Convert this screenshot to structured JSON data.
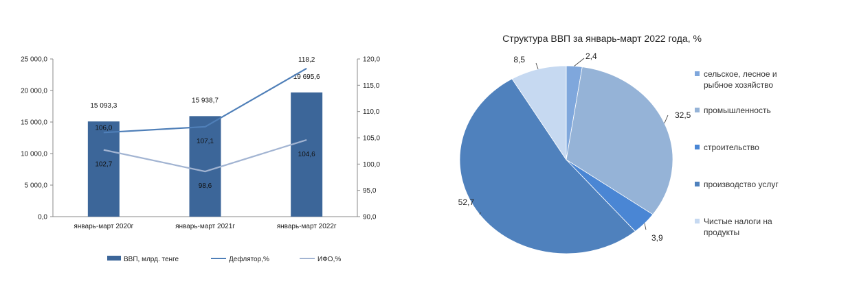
{
  "chart_data": [
    {
      "type": "bar",
      "title": "",
      "categories": [
        "январь-март 2020г",
        "январь-март 2021г",
        "январь-март 2022г"
      ],
      "series": [
        {
          "name": "ВВП, млрд. тенге",
          "kind": "bar",
          "axis": "left",
          "color": "#3c6699",
          "values": [
            15093.3,
            15938.7,
            19695.6
          ],
          "labels": [
            "15 093,3",
            "15 938,7",
            "19 695,6"
          ]
        },
        {
          "name": "Дефлятор,%",
          "kind": "line",
          "axis": "right",
          "color": "#4f7fb8",
          "values": [
            106.0,
            107.1,
            118.2
          ],
          "labels": [
            "106,0",
            "107,1",
            "118,2"
          ]
        },
        {
          "name": "ИФО,%",
          "kind": "line",
          "axis": "right",
          "color": "#a2b4d2",
          "values": [
            102.7,
            98.6,
            104.6
          ],
          "labels": [
            "102,7",
            "98,6",
            "104,6"
          ]
        }
      ],
      "y_left": {
        "min": 0,
        "max": 25000,
        "ticks": [
          "0,0",
          "5 000,0",
          "10 000,0",
          "15 000,0",
          "20 000,0",
          "25 000,0"
        ]
      },
      "y_right": {
        "min": 90,
        "max": 120,
        "ticks": [
          "90,0",
          "95,0",
          "100,0",
          "105,0",
          "110,0",
          "115,0",
          "120,0"
        ]
      },
      "grid": false,
      "legend": "bottom"
    },
    {
      "type": "pie",
      "title": "Структура ВВП за январь-март 2022 года, %",
      "slices": [
        {
          "label": "сельское, лесное и рыбное хозяйство",
          "legend_lines": [
            "сельское, лесное и",
            "рыбное хозяйство"
          ],
          "value": 2.4,
          "value_label": "2,4",
          "color": "#7fa7dc"
        },
        {
          "label": "промышленность",
          "legend_lines": [
            "промышленность"
          ],
          "value": 32.5,
          "value_label": "32,5",
          "color": "#95b3d7"
        },
        {
          "label": "строительство",
          "legend_lines": [
            "строительство"
          ],
          "value": 3.9,
          "value_label": "3,9",
          "color": "#4a86d4"
        },
        {
          "label": "производство услуг",
          "legend_lines": [
            "производство услуг"
          ],
          "value": 52.7,
          "value_label": "52,7",
          "color": "#4f81bd"
        },
        {
          "label": "Чистые налоги на продукты",
          "legend_lines": [
            "Чистые налоги на",
            "продукты"
          ],
          "value": 8.5,
          "value_label": "8,5",
          "color": "#c6d9f1"
        }
      ],
      "legend": "right"
    }
  ]
}
